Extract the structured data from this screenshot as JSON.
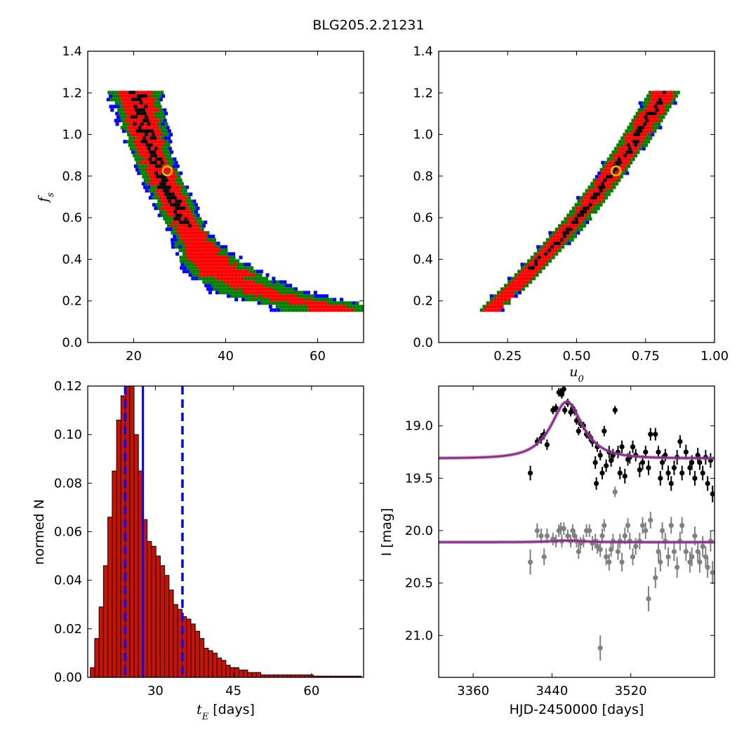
{
  "figure_title": "BLG205.2.21231",
  "colors": {
    "sigma1": "#000000",
    "sigma2": "#ff0000",
    "sigma3": "#007f00",
    "sigma4": "#0000ff",
    "best_fit_marker": "#cccc00",
    "hist_bar": "#cc1100",
    "hist_line": "#0000ff",
    "model_curve": "#9b1c9b",
    "dataset1": "#000000",
    "dataset2": "#808080"
  },
  "chart_data": [
    {
      "id": "tE_vs_fs",
      "type": "heatmap",
      "xlabel": "",
      "ylabel": "f_s",
      "xlim": [
        10,
        70
      ],
      "ylim": [
        0.0,
        1.4
      ],
      "xticks": [
        20,
        40,
        60
      ],
      "yticks": [
        "0.0",
        "0.2",
        "0.4",
        "0.6",
        "0.8",
        "1.0",
        "1.2",
        "1.4"
      ],
      "ridge": [
        [
          20.5,
          1.2
        ],
        [
          22,
          1.05
        ],
        [
          24,
          0.9
        ],
        [
          27,
          0.75
        ],
        [
          30,
          0.62
        ],
        [
          33,
          0.5
        ],
        [
          37,
          0.38
        ],
        [
          42,
          0.3
        ],
        [
          48,
          0.24
        ],
        [
          55,
          0.2
        ],
        [
          63,
          0.17
        ]
      ],
      "best_fit": {
        "x": 27.3,
        "y": 0.825
      }
    },
    {
      "id": "u0_vs_fs",
      "type": "heatmap",
      "xlabel": "u_0",
      "ylabel": "",
      "xlim": [
        0.0,
        1.0
      ],
      "ylim": [
        0.0,
        1.4
      ],
      "xticks": [
        "0.25",
        "0.50",
        "0.75",
        "1.00"
      ],
      "yticks": [
        "0.0",
        "0.2",
        "0.4",
        "0.6",
        "0.8",
        "1.0",
        "1.2",
        "1.4"
      ],
      "ridge": [
        [
          0.19,
          0.16
        ],
        [
          0.3,
          0.3
        ],
        [
          0.4,
          0.44
        ],
        [
          0.5,
          0.59
        ],
        [
          0.6,
          0.76
        ],
        [
          0.7,
          0.95
        ],
        [
          0.8,
          1.16
        ],
        [
          0.82,
          1.2
        ]
      ],
      "best_fit": {
        "x": 0.643,
        "y": 0.825
      }
    },
    {
      "id": "tE_histogram",
      "type": "bar",
      "xlabel_math": "t_E",
      "xlabel_text": "[days]",
      "ylabel": "normed N",
      "xlim": [
        17,
        70
      ],
      "ylim": [
        0.0,
        0.12
      ],
      "xticks": [
        30,
        45,
        60
      ],
      "yticks": [
        "0.00",
        "0.02",
        "0.04",
        "0.06",
        "0.08",
        "0.10",
        "0.12"
      ],
      "bin_start": 17.5,
      "bin_width": 0.84,
      "values": [
        0.004,
        0.016,
        0.029,
        0.046,
        0.066,
        0.085,
        0.106,
        0.116,
        0.12,
        0.12,
        0.1,
        0.085,
        0.065,
        0.056,
        0.054,
        0.05,
        0.046,
        0.042,
        0.036,
        0.03,
        0.028,
        0.025,
        0.024,
        0.022,
        0.019,
        0.016,
        0.012,
        0.011,
        0.01,
        0.008,
        0.007,
        0.005,
        0.004,
        0.004,
        0.003,
        0.003,
        0.002,
        0.002,
        0.002,
        0.001,
        0.001,
        0.001,
        0.001,
        0.001,
        0.001,
        0.001,
        0.001,
        0.001,
        0.001,
        0.001,
        0.001,
        0.0005,
        0.0005,
        0.0005,
        0.0005,
        0.0005,
        0.0005,
        0.0005,
        0.0005,
        0.0005,
        0.0005,
        0.0005
      ],
      "median": 27.6,
      "bounds": [
        24.2,
        35.2
      ]
    },
    {
      "id": "light_curve",
      "type": "scatter",
      "xlabel": "HJD-2450000 [days]",
      "ylabel": "I [mag]",
      "xlim": [
        3325,
        3605
      ],
      "ylim": [
        21.4,
        18.62
      ],
      "y_inverted": true,
      "xticks": [
        3360,
        3440,
        3520
      ],
      "yticks": [
        "19.0",
        "19.5",
        "20.0",
        "20.5",
        "21.0"
      ],
      "model1": {
        "baseline": 19.31,
        "peak_mag": 18.77,
        "t0": 3455,
        "tE": 27.6,
        "u0": 0.643
      },
      "model2": {
        "baseline": 20.11,
        "peak_mag": 20.095,
        "t0": 3455,
        "tE": 27.6
      },
      "dataset1": [
        [
          3418,
          19.45,
          0.07
        ],
        [
          3425,
          19.15,
          0.04
        ],
        [
          3429,
          19.12,
          0.05
        ],
        [
          3432,
          19.08,
          0.05
        ],
        [
          3435,
          19.18,
          0.05
        ],
        [
          3441,
          18.85,
          0.04
        ],
        [
          3444,
          18.83,
          0.04
        ],
        [
          3447,
          18.68,
          0.04
        ],
        [
          3449,
          18.68,
          0.04
        ],
        [
          3450,
          18.7,
          0.04
        ],
        [
          3452,
          18.65,
          0.04
        ],
        [
          3453,
          18.85,
          0.04
        ],
        [
          3456,
          18.78,
          0.04
        ],
        [
          3459,
          18.87,
          0.04
        ],
        [
          3461,
          18.83,
          0.04
        ],
        [
          3463,
          18.86,
          0.04
        ],
        [
          3465,
          18.95,
          0.04
        ],
        [
          3467,
          19.05,
          0.04
        ],
        [
          3469,
          18.98,
          0.04
        ],
        [
          3472,
          19.0,
          0.04
        ],
        [
          3475,
          19.08,
          0.04
        ],
        [
          3478,
          19.1,
          0.05
        ],
        [
          3481,
          19.15,
          0.05
        ],
        [
          3484,
          19.35,
          0.06
        ],
        [
          3485,
          19.55,
          0.06
        ],
        [
          3486,
          19.2,
          0.05
        ],
        [
          3489,
          19.28,
          0.05
        ],
        [
          3491,
          19.45,
          0.06
        ],
        [
          3493,
          19.05,
          0.05
        ],
        [
          3495,
          19.38,
          0.06
        ],
        [
          3498,
          19.25,
          0.06
        ],
        [
          3500,
          19.33,
          0.06
        ],
        [
          3502,
          19.28,
          0.06
        ],
        [
          3504,
          18.85,
          0.04
        ],
        [
          3507,
          19.25,
          0.06
        ],
        [
          3509,
          19.45,
          0.06
        ],
        [
          3511,
          19.2,
          0.06
        ],
        [
          3514,
          19.48,
          0.07
        ],
        [
          3517,
          19.32,
          0.06
        ],
        [
          3519,
          19.3,
          0.06
        ],
        [
          3522,
          19.2,
          0.06
        ],
        [
          3525,
          19.28,
          0.06
        ],
        [
          3529,
          19.42,
          0.07
        ],
        [
          3532,
          19.35,
          0.07
        ],
        [
          3535,
          19.25,
          0.06
        ],
        [
          3538,
          19.4,
          0.07
        ],
        [
          3540,
          19.08,
          0.06
        ],
        [
          3545,
          19.08,
          0.06
        ],
        [
          3548,
          19.25,
          0.06
        ],
        [
          3550,
          19.5,
          0.07
        ],
        [
          3552,
          19.35,
          0.07
        ],
        [
          3555,
          19.28,
          0.06
        ],
        [
          3558,
          19.45,
          0.07
        ],
        [
          3561,
          19.55,
          0.07
        ],
        [
          3564,
          19.4,
          0.07
        ],
        [
          3567,
          19.3,
          0.07
        ],
        [
          3570,
          19.15,
          0.06
        ],
        [
          3572,
          19.45,
          0.07
        ],
        [
          3576,
          19.25,
          0.07
        ],
        [
          3580,
          19.4,
          0.07
        ],
        [
          3582,
          19.35,
          0.07
        ],
        [
          3585,
          19.5,
          0.07
        ],
        [
          3588,
          19.28,
          0.07
        ],
        [
          3590,
          19.35,
          0.07
        ],
        [
          3593,
          19.45,
          0.07
        ],
        [
          3596,
          19.3,
          0.07
        ],
        [
          3598,
          19.55,
          0.07
        ],
        [
          3601,
          19.33,
          0.07
        ],
        [
          3603,
          19.65,
          0.08
        ]
      ],
      "dataset2": [
        [
          3418,
          20.3,
          0.12
        ],
        [
          3425,
          20.0,
          0.07
        ],
        [
          3429,
          20.05,
          0.07
        ],
        [
          3432,
          20.25,
          0.08
        ],
        [
          3435,
          20.05,
          0.07
        ],
        [
          3441,
          20.08,
          0.06
        ],
        [
          3444,
          20.1,
          0.06
        ],
        [
          3447,
          20.0,
          0.06
        ],
        [
          3449,
          19.98,
          0.06
        ],
        [
          3450,
          20.1,
          0.06
        ],
        [
          3452,
          19.98,
          0.06
        ],
        [
          3456,
          20.05,
          0.06
        ],
        [
          3459,
          20.1,
          0.06
        ],
        [
          3461,
          20.0,
          0.06
        ],
        [
          3463,
          20.05,
          0.06
        ],
        [
          3465,
          20.1,
          0.06
        ],
        [
          3467,
          20.2,
          0.07
        ],
        [
          3469,
          20.12,
          0.06
        ],
        [
          3472,
          20.1,
          0.06
        ],
        [
          3475,
          20.0,
          0.06
        ],
        [
          3478,
          20.0,
          0.06
        ],
        [
          3481,
          20.12,
          0.07
        ],
        [
          3484,
          20.1,
          0.07
        ],
        [
          3486,
          20.15,
          0.07
        ],
        [
          3489,
          20.18,
          0.07
        ],
        [
          3491,
          20.05,
          0.07
        ],
        [
          3493,
          19.95,
          0.06
        ],
        [
          3495,
          20.25,
          0.08
        ],
        [
          3498,
          20.3,
          0.08
        ],
        [
          3500,
          20.18,
          0.07
        ],
        [
          3502,
          20.1,
          0.07
        ],
        [
          3504,
          19.63,
          0.05
        ],
        [
          3507,
          20.2,
          0.08
        ],
        [
          3509,
          20.1,
          0.07
        ],
        [
          3511,
          20.3,
          0.09
        ],
        [
          3514,
          20.05,
          0.08
        ],
        [
          3517,
          19.95,
          0.07
        ],
        [
          3519,
          20.1,
          0.08
        ],
        [
          3522,
          20.25,
          0.08
        ],
        [
          3525,
          20.15,
          0.08
        ],
        [
          3529,
          20.1,
          0.08
        ],
        [
          3532,
          19.95,
          0.08
        ],
        [
          3535,
          20.0,
          0.08
        ],
        [
          3538,
          20.65,
          0.12
        ],
        [
          3540,
          19.9,
          0.08
        ],
        [
          3545,
          20.45,
          0.1
        ],
        [
          3548,
          20.2,
          0.09
        ],
        [
          3550,
          20.3,
          0.09
        ],
        [
          3552,
          20.0,
          0.08
        ],
        [
          3555,
          20.1,
          0.08
        ],
        [
          3558,
          20.25,
          0.09
        ],
        [
          3561,
          19.95,
          0.08
        ],
        [
          3564,
          20.2,
          0.09
        ],
        [
          3567,
          20.35,
          0.1
        ],
        [
          3570,
          20.1,
          0.09
        ],
        [
          3572,
          19.95,
          0.08
        ],
        [
          3576,
          20.2,
          0.09
        ],
        [
          3580,
          20.3,
          0.1
        ],
        [
          3582,
          20.25,
          0.09
        ],
        [
          3585,
          20.05,
          0.09
        ],
        [
          3588,
          20.2,
          0.1
        ],
        [
          3590,
          20.3,
          0.1
        ],
        [
          3593,
          20.15,
          0.1
        ],
        [
          3596,
          20.25,
          0.1
        ],
        [
          3598,
          20.35,
          0.1
        ],
        [
          3601,
          20.1,
          0.1
        ],
        [
          3603,
          20.4,
          0.11
        ],
        [
          3489,
          21.12,
          0.12
        ]
      ]
    }
  ]
}
